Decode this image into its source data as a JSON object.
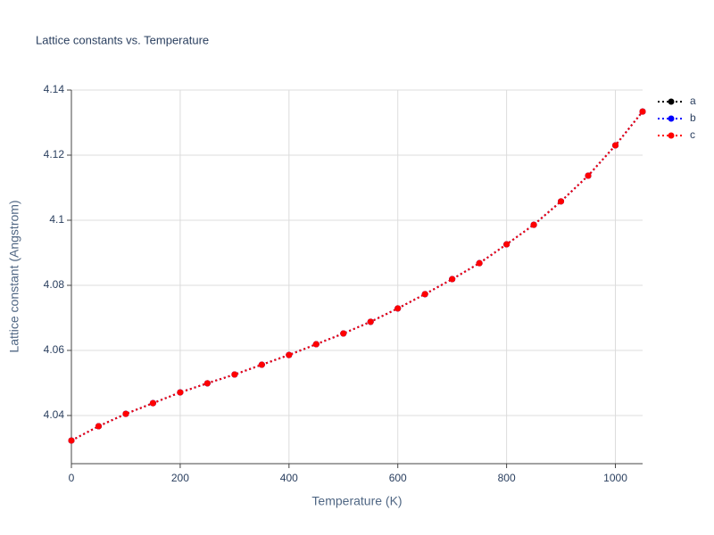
{
  "chart_data": {
    "type": "line",
    "title": "Lattice constants vs. Temperature",
    "x_label": "Temperature (K)",
    "y_label": "Lattice constant (Angstrom)",
    "x": [
      0,
      50,
      100,
      150,
      200,
      250,
      300,
      350,
      400,
      450,
      500,
      550,
      600,
      650,
      700,
      750,
      800,
      850,
      900,
      950,
      1000,
      1050
    ],
    "series": [
      {
        "name": "a",
        "color": "#000000",
        "values": [
          4.0323,
          4.0367,
          4.0405,
          4.0438,
          4.0471,
          4.0499,
          4.0526,
          4.0556,
          4.0586,
          4.0619,
          4.0652,
          4.0688,
          4.0729,
          4.0773,
          4.0819,
          4.0868,
          4.0926,
          4.0986,
          4.1058,
          4.1137,
          4.123,
          4.1334
        ]
      },
      {
        "name": "b",
        "color": "#0000ff",
        "values": [
          4.0323,
          4.0367,
          4.0405,
          4.0438,
          4.0471,
          4.0499,
          4.0526,
          4.0556,
          4.0586,
          4.0619,
          4.0652,
          4.0688,
          4.0729,
          4.0773,
          4.0819,
          4.0868,
          4.0926,
          4.0986,
          4.1058,
          4.1137,
          4.123,
          4.1334
        ]
      },
      {
        "name": "c",
        "color": "#ff0000",
        "values": [
          4.0323,
          4.0367,
          4.0405,
          4.0438,
          4.0471,
          4.0499,
          4.0526,
          4.0556,
          4.0586,
          4.0619,
          4.0652,
          4.0688,
          4.0729,
          4.0773,
          4.0819,
          4.0868,
          4.0926,
          4.0986,
          4.1058,
          4.1137,
          4.123,
          4.1334
        ]
      }
    ],
    "xlim": [
      0,
      1050
    ],
    "ylim": [
      4.0252,
      4.14
    ],
    "xticks": [
      0,
      200,
      400,
      600,
      800,
      1000
    ],
    "yticks": [
      4.04,
      4.06,
      4.08,
      4.1,
      4.12,
      4.14
    ],
    "grid": true,
    "legend": "right"
  }
}
